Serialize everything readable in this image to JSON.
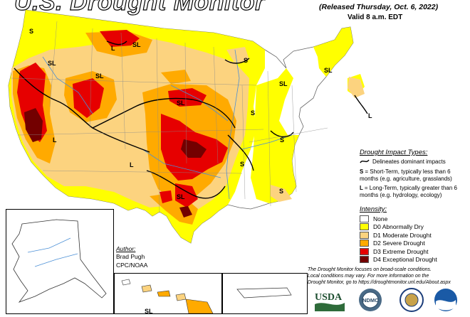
{
  "map": {
    "title": "U.S. Drought Monitor",
    "released": "(Released Thursday, Oct. 6, 2022)",
    "valid": "Valid 8 a.m. EDT"
  },
  "impact": {
    "heading": "Drought Impact Types:",
    "delineates": "Delineates dominant impacts",
    "short_term_key": "S",
    "short_term_text": "= Short-Term, typically less than 6 months (e.g. agriculture, grasslands)",
    "long_term_key": "L",
    "long_term_text": "= Long-Term, typically greater than 6 months (e.g. hydrology, ecology)"
  },
  "intensity": {
    "heading": "Intensity:",
    "levels": [
      {
        "label": "None",
        "color": "#ffffff"
      },
      {
        "label": "D0 Abnormally Dry",
        "color": "#ffff00"
      },
      {
        "label": "D1 Moderate Drought",
        "color": "#fcd37f"
      },
      {
        "label": "D2 Severe Drought",
        "color": "#ffaa00"
      },
      {
        "label": "D3 Extreme Drought",
        "color": "#e60000"
      },
      {
        "label": "D4 Exceptional Drought",
        "color": "#730000"
      }
    ]
  },
  "author": {
    "heading": "Author:",
    "name": "Brad Pugh",
    "org": "CPC/NOAA"
  },
  "note": {
    "line1": "The Drought Monitor focuses on broad-scale conditions.",
    "line2": "Local conditions may vary. For more information on the",
    "line3": "Drought Monitor, go to https://droughtmonitor.unl.edu/About.aspx"
  },
  "logos": {
    "usda": "USDA",
    "ndmc": "NDMC"
  },
  "region_labels": {
    "s": "S",
    "l": "L",
    "sl": "SL"
  }
}
